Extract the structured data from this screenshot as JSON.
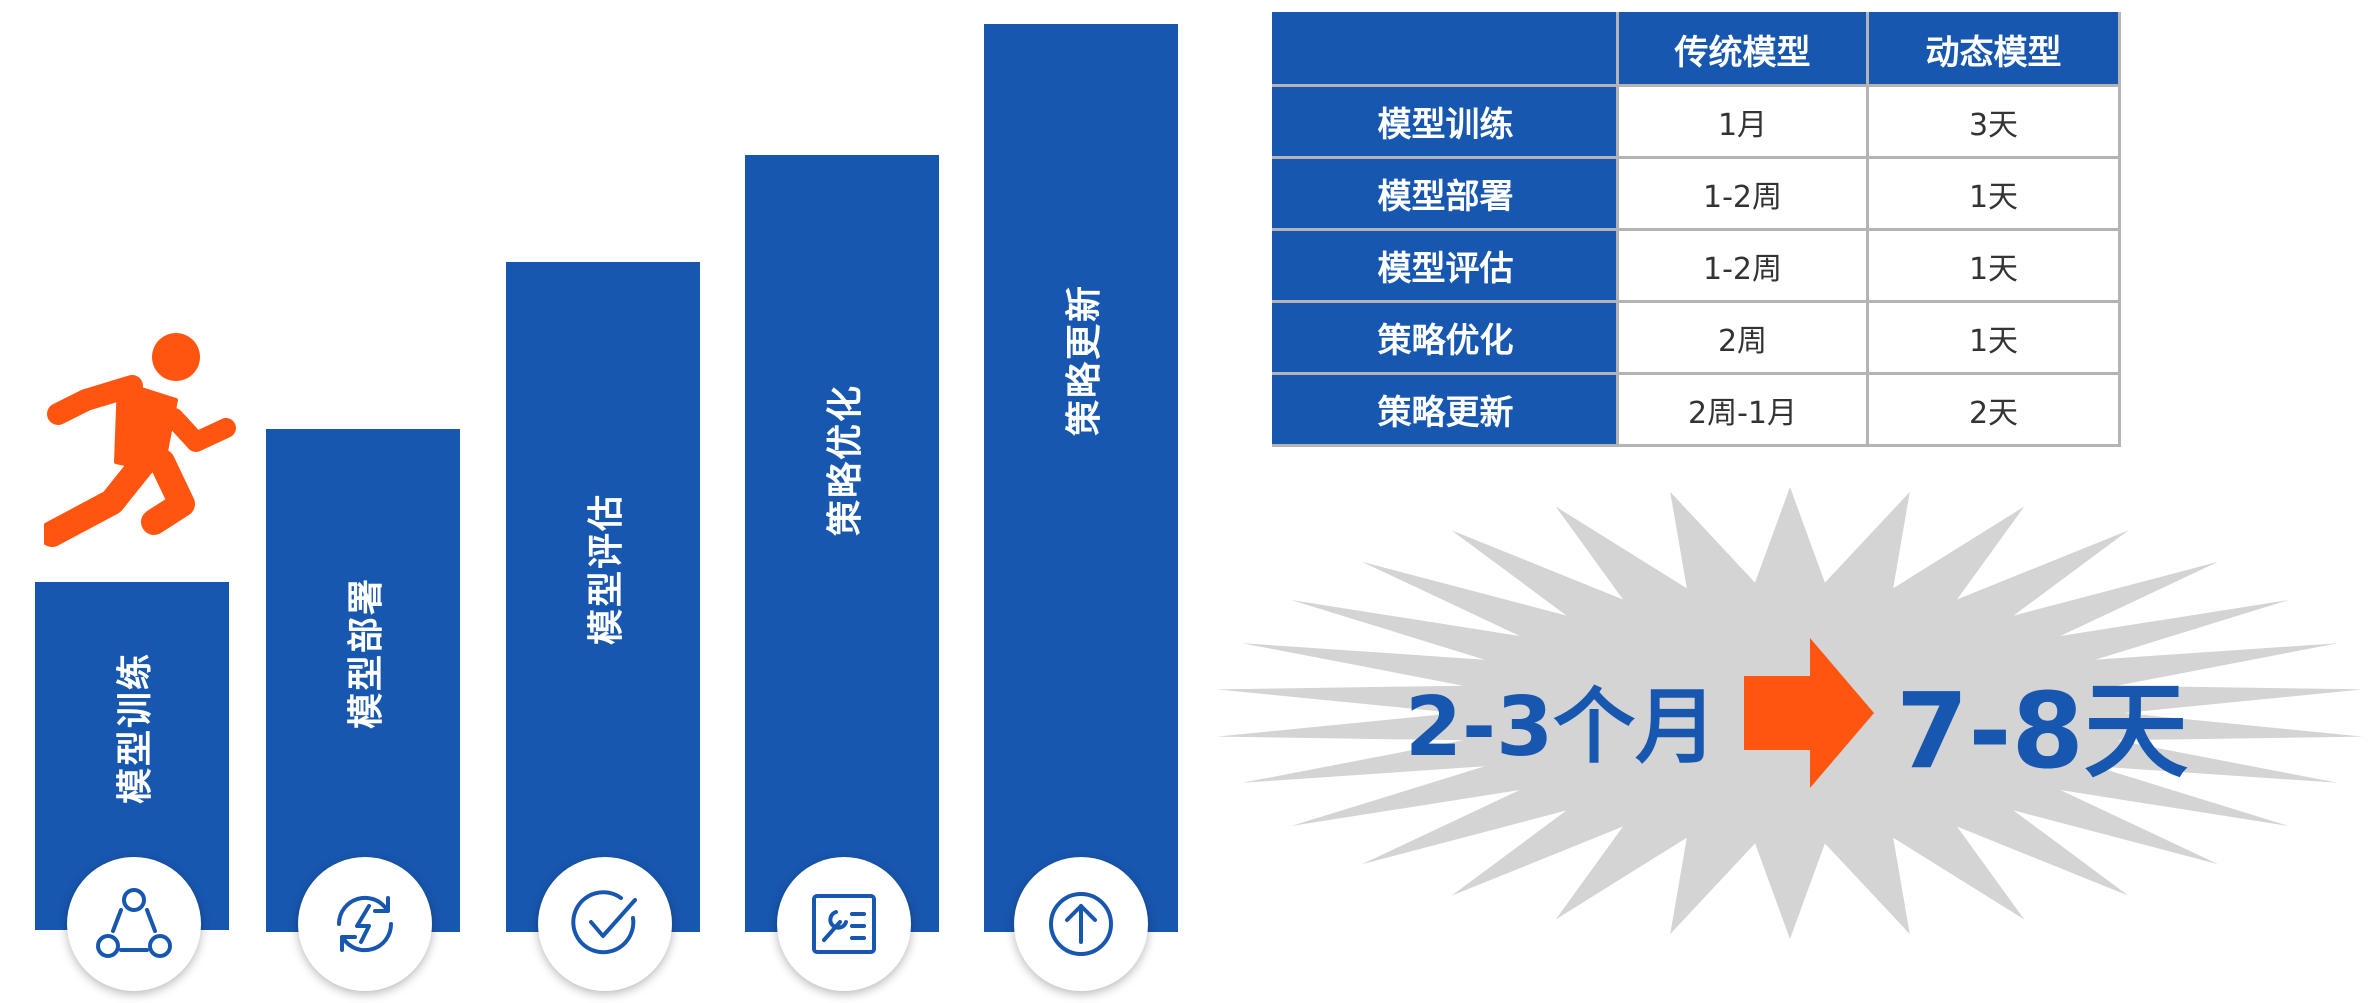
{
  "steps": [
    {
      "label": "模型训练",
      "icon": "team-cycle-icon"
    },
    {
      "label": "模型部署",
      "icon": "refresh-bolt-icon"
    },
    {
      "label": "模型评估",
      "icon": "check-circle-icon"
    },
    {
      "label": "策略优化",
      "icon": "tool-list-icon"
    },
    {
      "label": "策略更新",
      "icon": "up-arrow-circle-icon"
    }
  ],
  "table": {
    "headers": [
      "",
      "传统模型",
      "动态模型"
    ],
    "rows": [
      {
        "stage": "模型训练",
        "traditional": "1月",
        "dynamic": "3天"
      },
      {
        "stage": "模型部署",
        "traditional": "1-2周",
        "dynamic": "1天"
      },
      {
        "stage": "模型评估",
        "traditional": "1-2周",
        "dynamic": "1天"
      },
      {
        "stage": "策略优化",
        "traditional": "2周",
        "dynamic": "1天"
      },
      {
        "stage": "策略更新",
        "traditional": "2周-1月",
        "dynamic": "2天"
      }
    ]
  },
  "summary": {
    "before": "2-3个月",
    "after": "7-8天"
  },
  "colors": {
    "primary": "#1857b0",
    "accent": "#ff5510",
    "burst": "#d4d4d4"
  }
}
